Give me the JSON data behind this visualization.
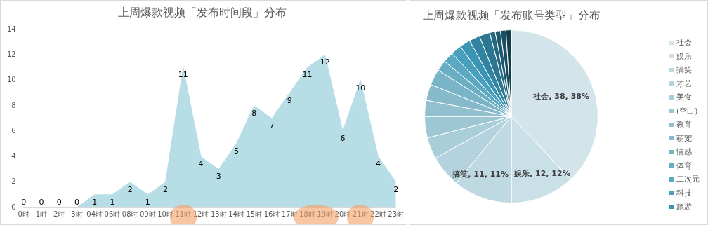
{
  "chart_data": [
    {
      "type": "area",
      "title": "上周爆款视频「发布时间段」分布",
      "categories": [
        "0时",
        "1时",
        "2时",
        "3时",
        "04时",
        "06时",
        "08时",
        "09时",
        "10时",
        "11时",
        "12时",
        "13时",
        "14时",
        "15时",
        "16时",
        "17时",
        "18时",
        "19时",
        "20时",
        "21时",
        "22时",
        "23时"
      ],
      "values": [
        0,
        0,
        0,
        0,
        1,
        1,
        2,
        1,
        2,
        11,
        4,
        3,
        5,
        8,
        7,
        9,
        11,
        12,
        6,
        10,
        4,
        2
      ],
      "color": "#b7dde7",
      "ylim": [
        0,
        14
      ],
      "yticks": [
        0,
        2,
        4,
        6,
        8,
        10,
        12,
        14
      ],
      "grid": false,
      "data_labels": true,
      "legend": false
    },
    {
      "type": "pie",
      "title": "上周爆款视频「发布账号类型」分布",
      "categories": [
        "社会",
        "娱乐",
        "搞笑",
        "才艺",
        "美食",
        "(空白)",
        "教育",
        "萌宠",
        "情感",
        "体育",
        "二次元",
        "科技",
        "旅游",
        null,
        null,
        null,
        null,
        null,
        null
      ],
      "values": [
        38,
        12,
        11,
        6,
        4,
        4,
        3,
        3,
        3,
        2,
        2,
        2,
        2,
        2,
        2,
        1,
        1,
        1,
        1
      ],
      "colors": [
        "#d3e5eb",
        "#c9e0e7",
        "#bfd9e2",
        "#b4d3de",
        "#a9cdd9",
        "#9ec7d4",
        "#92c0cf",
        "#86bacb",
        "#79b4c7",
        "#6aaec4",
        "#5aa8c2",
        "#48a0bd",
        "#3a94b3",
        "#3185a3",
        "#2b7792",
        "#256981",
        "#1f5b70",
        "#194d5f",
        "#123e4d"
      ],
      "value_labels": [
        "社会, 38, 38%",
        "娱乐, 12, 12%",
        "搞笑, 11, 11%",
        null,
        null,
        null,
        null,
        null,
        null,
        null,
        null,
        null,
        null,
        null,
        null,
        null,
        null,
        null,
        null
      ],
      "legend": "right"
    }
  ]
}
